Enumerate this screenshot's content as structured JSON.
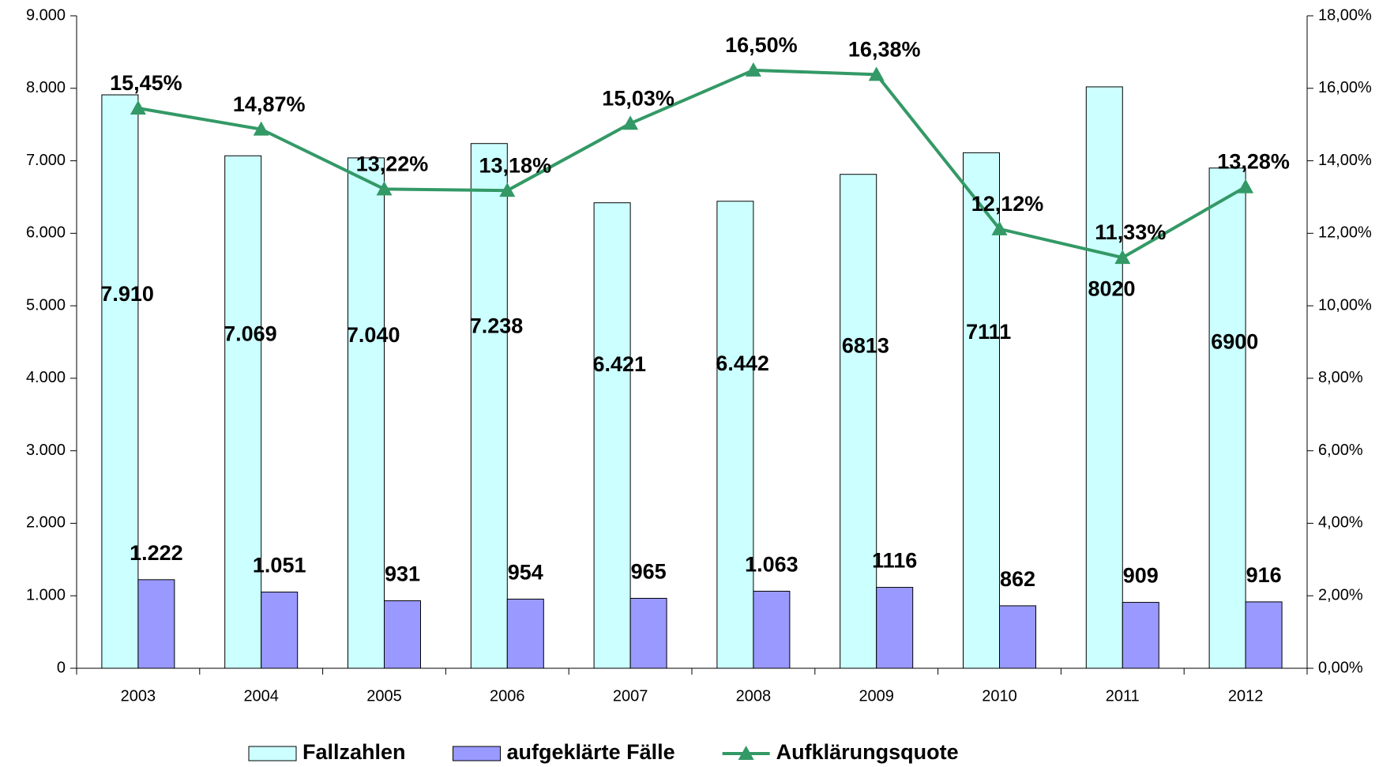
{
  "chart_data": {
    "type": "bar",
    "categories": [
      "2003",
      "2004",
      "2005",
      "2006",
      "2007",
      "2008",
      "2009",
      "2010",
      "2011",
      "2012"
    ],
    "series": [
      {
        "name": "Fallzahlen",
        "color": "#ccffff",
        "values": [
          7910,
          7069,
          7040,
          7238,
          6421,
          6442,
          6813,
          7111,
          8020,
          6900
        ],
        "value_labels": [
          "7.910",
          "7.069",
          "7.040",
          "7.238",
          "6.421",
          "6.442",
          "6813",
          "7111",
          "8020",
          "6900"
        ]
      },
      {
        "name": "aufgeklärte Fälle",
        "color": "#9999ff",
        "values": [
          1222,
          1051,
          931,
          954,
          965,
          1063,
          1116,
          862,
          909,
          916
        ],
        "value_labels": [
          "1.222",
          "1.051",
          "931",
          "954",
          "965",
          "1.063",
          "1116",
          "862",
          "909",
          "916"
        ]
      },
      {
        "name": "Aufklärungsquote",
        "color": "#339966",
        "type": "line",
        "axis": "y2",
        "values": [
          15.45,
          14.87,
          13.22,
          13.18,
          15.03,
          16.5,
          16.38,
          12.12,
          11.33,
          13.28
        ],
        "value_labels": [
          "15,45%",
          "14,87%",
          "13,22%",
          "13,18%",
          "15,03%",
          "16,50%",
          "16,38%",
          "12,12%",
          "11,33%",
          "13,28%"
        ]
      }
    ],
    "ylim": [
      0,
      9000
    ],
    "yticks": [
      0,
      {
        "value": 1000,
        "label": "1.000"
      },
      {
        "value": 2000,
        "label": "2.000"
      },
      {
        "value": 3000,
        "label": "3.000"
      },
      {
        "value": 4000,
        "label": "4.000"
      },
      {
        "value": 5000,
        "label": "5.000"
      },
      {
        "value": 6000,
        "label": "6.000"
      },
      {
        "value": 7000,
        "label": "7.000"
      },
      {
        "value": 8000,
        "label": "8.000"
      },
      {
        "value": 9000,
        "label": "9.000"
      }
    ],
    "y2lim": [
      0,
      18
    ],
    "y2ticks": [
      {
        "value": 0,
        "label": "0,00%"
      },
      {
        "value": 2,
        "label": "2,00%"
      },
      {
        "value": 4,
        "label": "4,00%"
      },
      {
        "value": 6,
        "label": "6,00%"
      },
      {
        "value": 8,
        "label": "8,00%"
      },
      {
        "value": 10,
        "label": "10,00%"
      },
      {
        "value": 12,
        "label": "12,00%"
      },
      {
        "value": 14,
        "label": "14,00%"
      },
      {
        "value": 16,
        "label": "16,00%"
      },
      {
        "value": 18,
        "label": "18,00%"
      }
    ],
    "legend": "bottom"
  }
}
